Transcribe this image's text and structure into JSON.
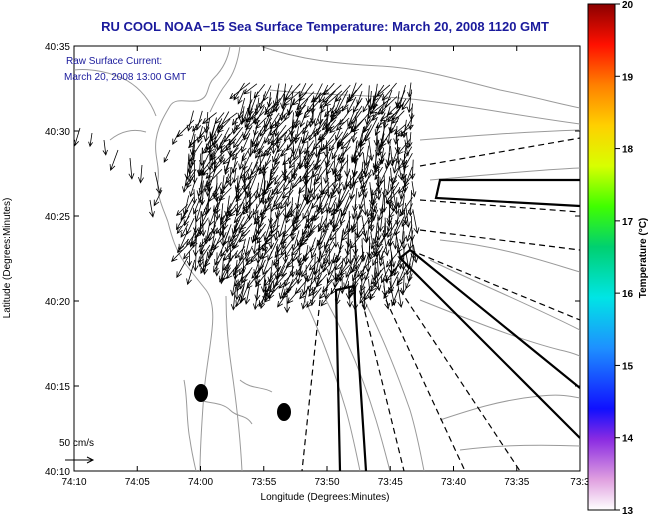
{
  "chart_data": {
    "type": "vector-field",
    "title": "RU COOL  NOAA−15  Sea Surface Temperature:  March 20, 2008 1120 GMT",
    "subtitle_line1": "Raw Surface Current:",
    "subtitle_line2": "March 20, 2008 13:00 GMT",
    "xlabel": "Longitude (Degrees:Minutes)",
    "ylabel": "Latitude (Degrees:Minutes)",
    "x_ticks": [
      "74:10",
      "74:05",
      "74:00",
      "73:55",
      "73:50",
      "73:45",
      "73:40",
      "73:35",
      "73:3"
    ],
    "y_ticks": [
      "40:35",
      "40:30",
      "40:25",
      "40:20",
      "40:15",
      "40:10"
    ],
    "xlim_minutes_west": [
      10,
      30
    ],
    "ylim_minutes_north": [
      10,
      35
    ],
    "scale_label": "50 cm/s",
    "colorbar": {
      "label": "Temperature (°C)",
      "range": [
        13,
        20
      ],
      "ticks": [
        "20",
        "19",
        "18",
        "17",
        "16",
        "15",
        "14",
        "13"
      ]
    },
    "vector_region": {
      "lon_minutes_west": [
        1.5,
        16.5
      ],
      "lat_minutes_north": [
        20.5,
        30.8
      ],
      "dominant_direction": "south-southwest"
    },
    "markers": [
      {
        "name": "station-1",
        "lon_minutes_west": 9.0,
        "lat_minutes_north": 14.3
      },
      {
        "name": "station-2",
        "lon_minutes_west": 2.3,
        "lat_minutes_north": 13.5
      }
    ]
  },
  "colors": {
    "title": "#1a1a9c",
    "land": "#ffffff",
    "water": "#ffffff",
    "contour": "#9a9a9a",
    "vectors": "#000000"
  }
}
